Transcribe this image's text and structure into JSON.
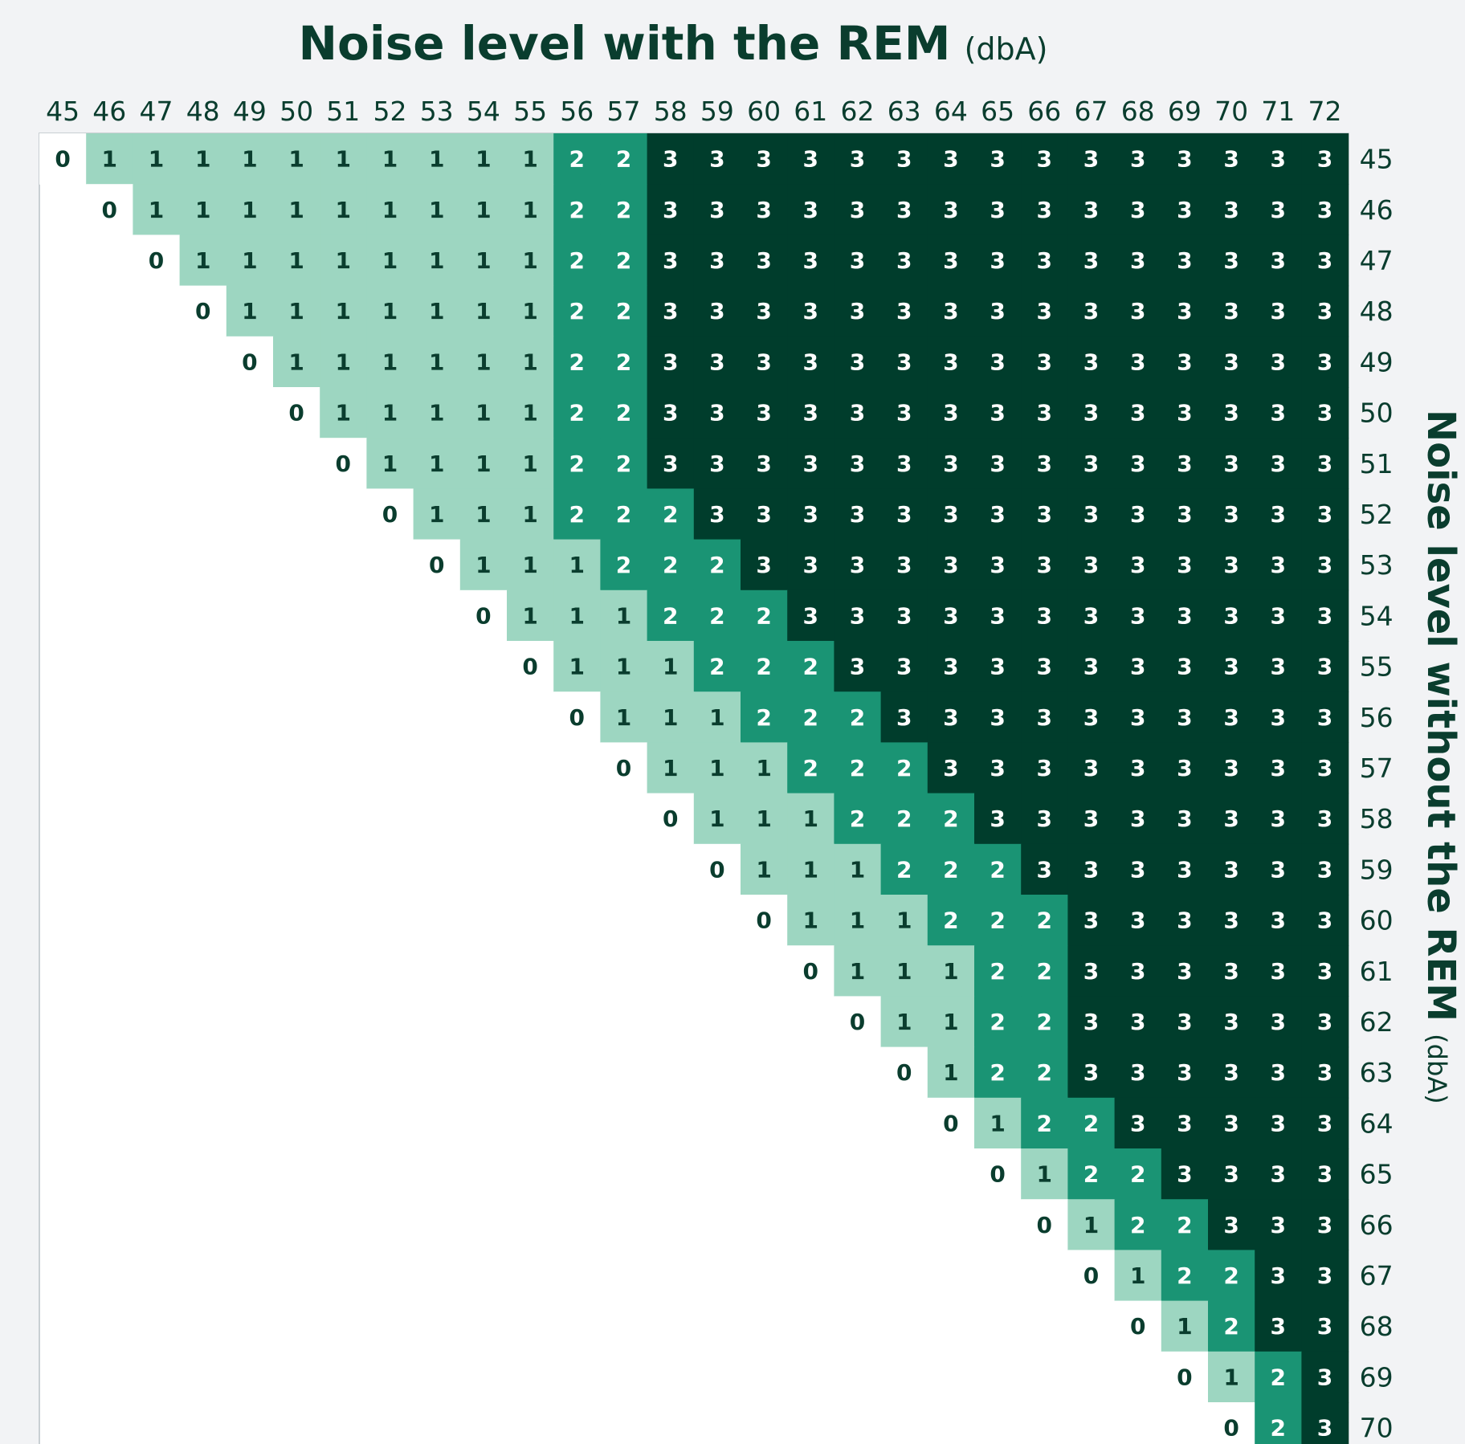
{
  "chart_data": {
    "type": "heatmap",
    "title": "Noise level with the REM",
    "title_unit": "(dbA)",
    "ylabel": "Noise level without the REM",
    "ylabel_unit": "(dbA)",
    "x_ticks": [
      45,
      46,
      47,
      48,
      49,
      50,
      51,
      52,
      53,
      54,
      55,
      56,
      57,
      58,
      59,
      60,
      61,
      62,
      63,
      64,
      65,
      66,
      67,
      68,
      69,
      70,
      71,
      72
    ],
    "y_ticks": [
      45,
      46,
      47,
      48,
      49,
      50,
      51,
      52,
      53,
      54,
      55,
      56,
      57,
      58,
      59,
      60,
      61,
      62,
      63,
      64,
      65,
      66,
      67,
      68,
      69,
      70
    ],
    "rows": [
      {
        "y": 45,
        "values": [
          0,
          1,
          1,
          1,
          1,
          1,
          1,
          1,
          1,
          1,
          1,
          2,
          2,
          3,
          3,
          3,
          3,
          3,
          3,
          3,
          3,
          3,
          3,
          3,
          3,
          3,
          3,
          3
        ]
      },
      {
        "y": 46,
        "values": [
          0,
          1,
          1,
          1,
          1,
          1,
          1,
          1,
          1,
          1,
          2,
          2,
          3,
          3,
          3,
          3,
          3,
          3,
          3,
          3,
          3,
          3,
          3,
          3,
          3,
          3,
          3
        ]
      },
      {
        "y": 47,
        "values": [
          0,
          1,
          1,
          1,
          1,
          1,
          1,
          1,
          1,
          2,
          2,
          3,
          3,
          3,
          3,
          3,
          3,
          3,
          3,
          3,
          3,
          3,
          3,
          3,
          3,
          3
        ]
      },
      {
        "y": 48,
        "values": [
          0,
          1,
          1,
          1,
          1,
          1,
          1,
          1,
          2,
          2,
          3,
          3,
          3,
          3,
          3,
          3,
          3,
          3,
          3,
          3,
          3,
          3,
          3,
          3,
          3
        ]
      },
      {
        "y": 49,
        "values": [
          0,
          1,
          1,
          1,
          1,
          1,
          1,
          2,
          2,
          3,
          3,
          3,
          3,
          3,
          3,
          3,
          3,
          3,
          3,
          3,
          3,
          3,
          3,
          3
        ]
      },
      {
        "y": 50,
        "values": [
          0,
          1,
          1,
          1,
          1,
          1,
          2,
          2,
          3,
          3,
          3,
          3,
          3,
          3,
          3,
          3,
          3,
          3,
          3,
          3,
          3,
          3,
          3
        ]
      },
      {
        "y": 51,
        "values": [
          0,
          1,
          1,
          1,
          1,
          2,
          2,
          3,
          3,
          3,
          3,
          3,
          3,
          3,
          3,
          3,
          3,
          3,
          3,
          3,
          3,
          3
        ]
      },
      {
        "y": 52,
        "values": [
          0,
          1,
          1,
          1,
          2,
          2,
          2,
          3,
          3,
          3,
          3,
          3,
          3,
          3,
          3,
          3,
          3,
          3,
          3,
          3,
          3
        ]
      },
      {
        "y": 53,
        "values": [
          0,
          1,
          1,
          1,
          2,
          2,
          2,
          3,
          3,
          3,
          3,
          3,
          3,
          3,
          3,
          3,
          3,
          3,
          3,
          3
        ]
      },
      {
        "y": 54,
        "values": [
          0,
          1,
          1,
          1,
          2,
          2,
          2,
          3,
          3,
          3,
          3,
          3,
          3,
          3,
          3,
          3,
          3,
          3,
          3
        ]
      },
      {
        "y": 55,
        "values": [
          0,
          1,
          1,
          1,
          2,
          2,
          2,
          3,
          3,
          3,
          3,
          3,
          3,
          3,
          3,
          3,
          3,
          3
        ]
      },
      {
        "y": 56,
        "values": [
          0,
          1,
          1,
          1,
          2,
          2,
          2,
          3,
          3,
          3,
          3,
          3,
          3,
          3,
          3,
          3,
          3
        ]
      },
      {
        "y": 57,
        "values": [
          0,
          1,
          1,
          1,
          2,
          2,
          2,
          3,
          3,
          3,
          3,
          3,
          3,
          3,
          3,
          3
        ]
      },
      {
        "y": 58,
        "values": [
          0,
          1,
          1,
          1,
          2,
          2,
          2,
          3,
          3,
          3,
          3,
          3,
          3,
          3,
          3
        ]
      },
      {
        "y": 59,
        "values": [
          0,
          1,
          1,
          1,
          2,
          2,
          2,
          3,
          3,
          3,
          3,
          3,
          3,
          3
        ]
      },
      {
        "y": 60,
        "values": [
          0,
          1,
          1,
          1,
          2,
          2,
          2,
          3,
          3,
          3,
          3,
          3,
          3
        ]
      },
      {
        "y": 61,
        "values": [
          0,
          1,
          1,
          1,
          2,
          2,
          3,
          3,
          3,
          3,
          3,
          3
        ]
      },
      {
        "y": 62,
        "values": [
          0,
          1,
          1,
          2,
          2,
          3,
          3,
          3,
          3,
          3,
          3
        ]
      },
      {
        "y": 63,
        "values": [
          0,
          1,
          2,
          2,
          3,
          3,
          3,
          3,
          3,
          3
        ]
      },
      {
        "y": 64,
        "values": [
          0,
          1,
          2,
          2,
          3,
          3,
          3,
          3,
          3
        ]
      },
      {
        "y": 65,
        "values": [
          0,
          1,
          2,
          2,
          3,
          3,
          3,
          3
        ]
      },
      {
        "y": 66,
        "values": [
          0,
          1,
          2,
          2,
          3,
          3,
          3
        ]
      },
      {
        "y": 67,
        "values": [
          0,
          1,
          2,
          2,
          3,
          3
        ]
      },
      {
        "y": 68,
        "values": [
          0,
          1,
          2,
          3,
          3
        ]
      },
      {
        "y": 69,
        "values": [
          0,
          1,
          2,
          3
        ]
      },
      {
        "y": 70,
        "values": [
          0,
          2,
          3
        ]
      }
    ],
    "colors": {
      "0": "#ffffff",
      "1": "#9dd6c1",
      "2": "#1a9474",
      "3": "#003d2c",
      "empty": "#ffffff",
      "text_dark": "#0a3d2e",
      "text_light": "#ffffff",
      "border": "#c9cfd3"
    }
  }
}
